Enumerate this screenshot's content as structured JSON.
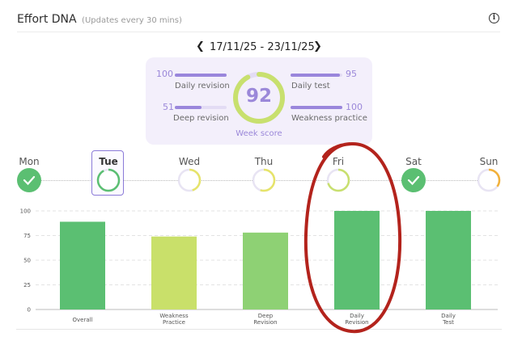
{
  "header": {
    "title": "Effort DNA",
    "note": "(Updates every 30 mins)",
    "info_icon": "info-icon"
  },
  "week_nav": {
    "range": "17/11/25 - 23/11/25",
    "prev_icon": "‹",
    "next_icon": "›"
  },
  "score_card": {
    "score": "92",
    "score_value": 92,
    "label": "Week score",
    "stats": {
      "daily_revision": {
        "value": "100",
        "label": "Daily revision",
        "fraction": 1.0
      },
      "deep_revision": {
        "value": "51",
        "label": "Deep revision",
        "fraction": 0.51
      },
      "daily_test": {
        "value": "95",
        "label": "Daily test",
        "fraction": 0.95
      },
      "weakness_practice": {
        "value": "100",
        "label": "Weakness practice",
        "fraction": 1.0
      }
    },
    "colors": {
      "accent": "#9b88d9",
      "gauge": "#c8e06e",
      "track": "#e3dcf4"
    }
  },
  "days": [
    {
      "name": "Mon",
      "status": "complete"
    },
    {
      "name": "Tue",
      "status": "partial",
      "selected": true,
      "progress": 0.92
    },
    {
      "name": "Wed",
      "status": "partial",
      "progress": 0.45
    },
    {
      "name": "Thu",
      "status": "partial",
      "progress": 0.55
    },
    {
      "name": "Fri",
      "status": "partial",
      "progress": 0.7
    },
    {
      "name": "Sat",
      "status": "complete"
    },
    {
      "name": "Sun",
      "status": "partial",
      "progress": 0.35
    }
  ],
  "chart_data": {
    "type": "bar",
    "categories": [
      "Overall",
      "Weakness Practice",
      "Deep Revision",
      "Daily Revision",
      "Daily Test"
    ],
    "category_lines": [
      [
        "Overall"
      ],
      [
        "Weakness",
        "Practice"
      ],
      [
        "Deep",
        "Revision"
      ],
      [
        "Daily",
        "Revision"
      ],
      [
        "Daily",
        "Test"
      ]
    ],
    "values": [
      89,
      74,
      78,
      100,
      100
    ],
    "colors": [
      "#5bbf72",
      "#c9e06a",
      "#8ed174",
      "#5bbf72",
      "#5bbf72"
    ],
    "ylim": [
      0,
      100
    ],
    "yticks": [
      "0",
      "25",
      "50",
      "75",
      "100"
    ],
    "grid": true,
    "highlight": "Daily Revision"
  }
}
